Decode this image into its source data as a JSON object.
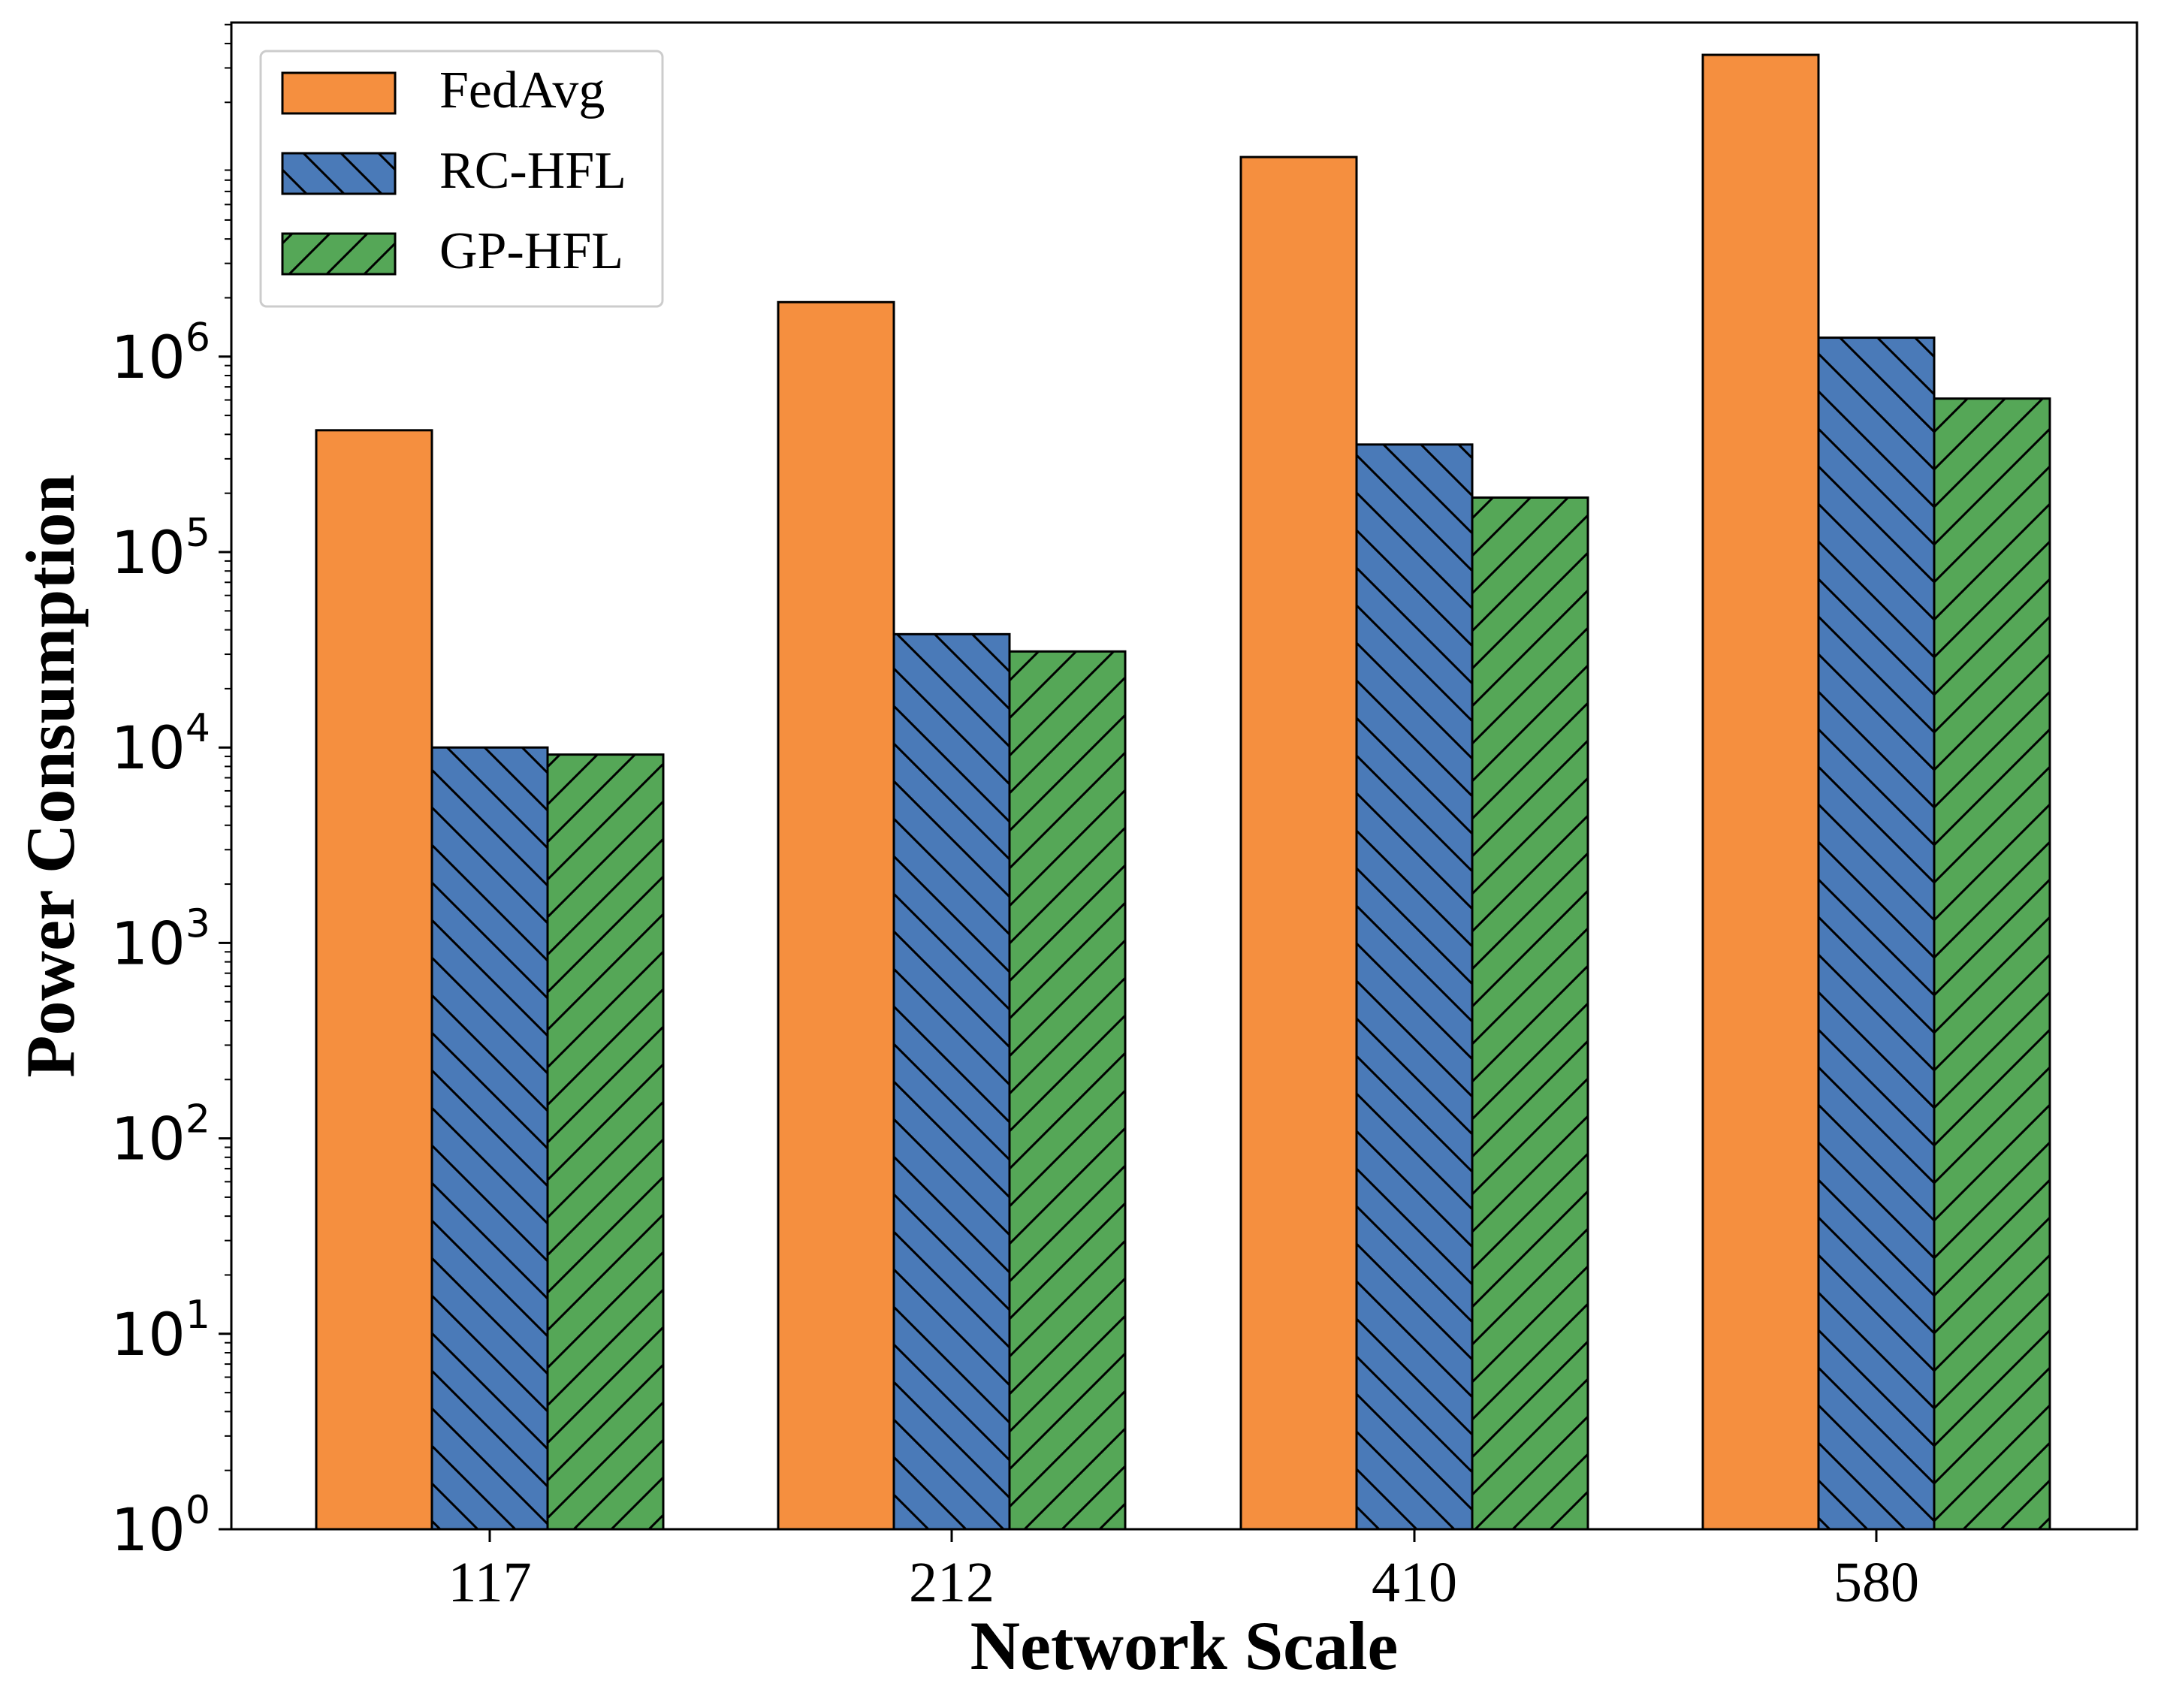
{
  "chart_data": {
    "type": "bar",
    "title": "",
    "xlabel": "Network Scale",
    "ylabel": "Power Consumption",
    "yscale": "log",
    "ylim": [
      1,
      100000000
    ],
    "yticks": [
      {
        "value": 1,
        "base": "10",
        "exp": "0"
      },
      {
        "value": 10,
        "base": "10",
        "exp": "1"
      },
      {
        "value": 100,
        "base": "10",
        "exp": "2"
      },
      {
        "value": 1000,
        "base": "10",
        "exp": "3"
      },
      {
        "value": 10000,
        "base": "10",
        "exp": "4"
      },
      {
        "value": 100000,
        "base": "10",
        "exp": "5"
      },
      {
        "value": 1000000,
        "base": "10",
        "exp": "6"
      }
    ],
    "categories": [
      "117",
      "212",
      "410",
      "580"
    ],
    "series": [
      {
        "name": "FedAvg",
        "color": "#F58F3F",
        "hatch": "none",
        "values": [
          420000,
          1900000,
          10500000,
          35000000
        ]
      },
      {
        "name": "RC-HFL",
        "color": "#4A7AB8",
        "hatch": "backslash",
        "values": [
          10000,
          38000,
          355000,
          1250000
        ]
      },
      {
        "name": "GP-HFL",
        "color": "#55A757",
        "hatch": "slash",
        "values": [
          9200,
          31000,
          190000,
          610000
        ]
      }
    ],
    "legend_position": "top-left",
    "grid": false
  }
}
